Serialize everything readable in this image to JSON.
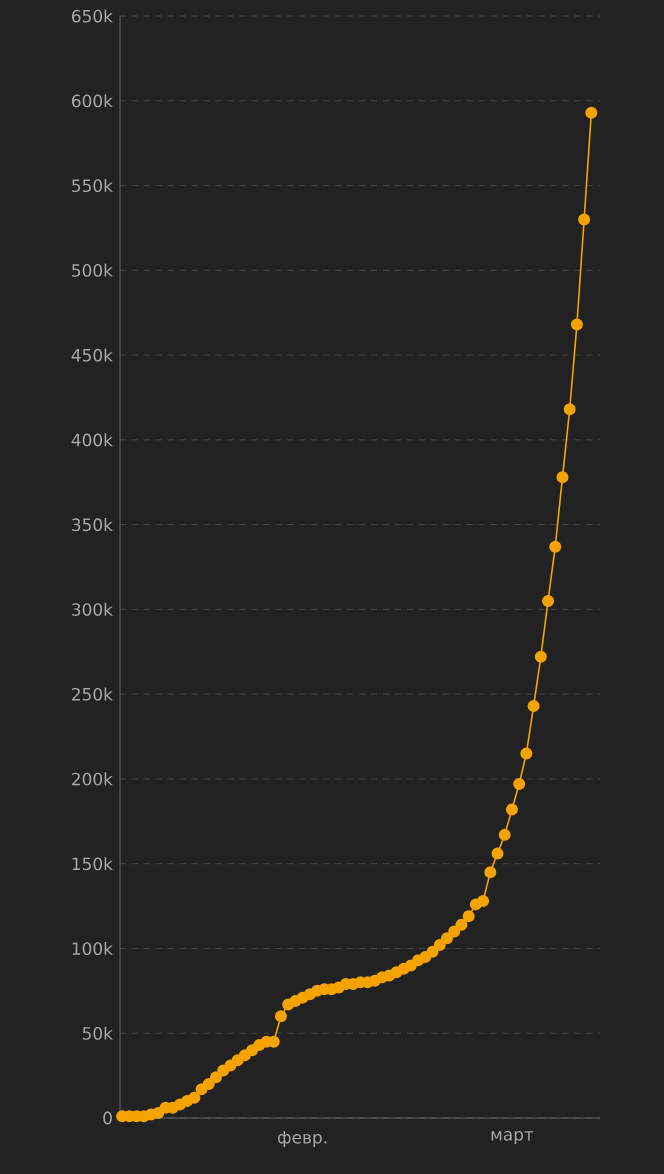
{
  "chart_data": {
    "type": "line",
    "color": "#f5a300",
    "marker": "circle",
    "grid": "y",
    "categories": [
      null,
      null,
      null,
      null,
      null,
      null,
      null,
      null,
      null,
      null,
      null,
      null,
      null,
      null,
      null,
      null,
      null,
      null,
      null,
      null,
      null,
      null,
      null,
      null,
      null,
      "февр.",
      null,
      null,
      null,
      null,
      null,
      null,
      null,
      null,
      null,
      null,
      null,
      null,
      null,
      null,
      null,
      null,
      null,
      null,
      null,
      null,
      null,
      null,
      null,
      null,
      null,
      null,
      null,
      null,
      "март",
      null,
      null,
      null,
      null,
      null,
      null,
      null,
      null,
      null,
      null,
      null
    ],
    "ylim": [
      0,
      650000
    ],
    "yticks": [
      0,
      {
        "value": 50000,
        "label": "50k"
      },
      {
        "value": 100000,
        "label": "100k"
      },
      {
        "value": 150000,
        "label": "150k"
      },
      {
        "value": 200000,
        "label": "200k"
      },
      {
        "value": 250000,
        "label": "250k"
      },
      {
        "value": 300000,
        "label": "300k"
      },
      {
        "value": 350000,
        "label": "350k"
      },
      {
        "value": 400000,
        "label": "400k"
      },
      {
        "value": 450000,
        "label": "450k"
      },
      {
        "value": 500000,
        "label": "500k"
      },
      {
        "value": 550000,
        "label": "550k"
      },
      {
        "value": 600000,
        "label": "600k"
      },
      {
        "value": 650000,
        "label": "650k"
      }
    ],
    "values": [
      1000,
      1000,
      1000,
      1000,
      2000,
      3000,
      6000,
      6000,
      8000,
      10000,
      12000,
      17000,
      20000,
      24000,
      28000,
      31000,
      34000,
      37000,
      40000,
      43000,
      45000,
      45000,
      60000,
      67000,
      69000,
      71000,
      73000,
      75000,
      76000,
      76000,
      77000,
      79000,
      79000,
      80000,
      80000,
      81000,
      83000,
      84000,
      86000,
      88000,
      90000,
      93000,
      95000,
      98000,
      102000,
      106000,
      110000,
      114000,
      119000,
      126000,
      128000,
      145000,
      156000,
      167000,
      182000,
      197000,
      215000,
      243000,
      272000,
      305000,
      337000,
      378000,
      418000,
      468000,
      530000,
      593000
    ]
  }
}
